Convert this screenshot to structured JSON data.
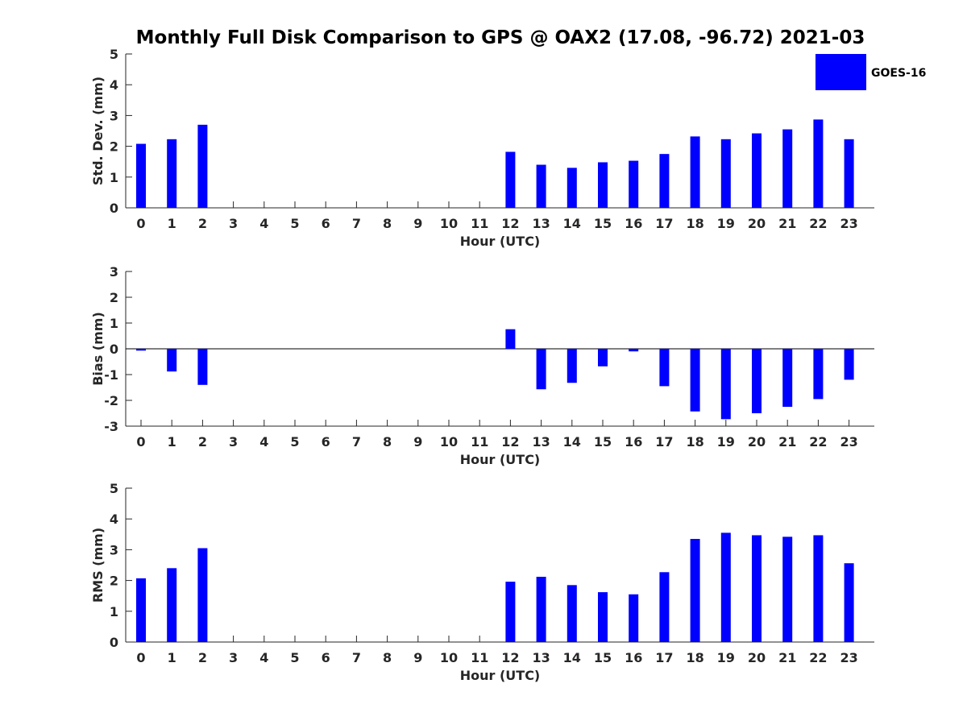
{
  "title": "Monthly Full Disk Comparison to GPS @ OAX2 (17.08, -96.72) 2021-03",
  "legend": {
    "label": "GOES-16",
    "color": "#0000ff"
  },
  "chart_data": [
    {
      "type": "bar",
      "title": "Monthly Full Disk Comparison to GPS @ OAX2 (17.08, -96.72) 2021-03",
      "xlabel": "Hour (UTC)",
      "ylabel": "Std. Dev. (mm)",
      "ylim": [
        0,
        5
      ],
      "yticks": [
        0,
        1,
        2,
        3,
        4,
        5
      ],
      "categories": [
        "0",
        "1",
        "2",
        "3",
        "4",
        "5",
        "6",
        "7",
        "8",
        "9",
        "10",
        "11",
        "12",
        "13",
        "14",
        "15",
        "16",
        "17",
        "18",
        "19",
        "20",
        "21",
        "22",
        "23"
      ],
      "series": [
        {
          "name": "GOES-16",
          "color": "#0000ff",
          "values": [
            2.08,
            2.23,
            2.7,
            null,
            null,
            null,
            null,
            null,
            null,
            null,
            null,
            null,
            1.82,
            1.4,
            1.3,
            1.48,
            1.53,
            1.75,
            2.32,
            2.23,
            2.42,
            2.55,
            2.87,
            2.23
          ]
        }
      ]
    },
    {
      "type": "bar",
      "xlabel": "Hour (UTC)",
      "ylabel": "Bias (mm)",
      "ylim": [
        -3,
        3
      ],
      "yticks": [
        -3,
        -2,
        -1,
        0,
        1,
        2,
        3
      ],
      "categories": [
        "0",
        "1",
        "2",
        "3",
        "4",
        "5",
        "6",
        "7",
        "8",
        "9",
        "10",
        "11",
        "12",
        "13",
        "14",
        "15",
        "16",
        "17",
        "18",
        "19",
        "20",
        "21",
        "22",
        "23"
      ],
      "series": [
        {
          "name": "GOES-16",
          "color": "#0000ff",
          "values": [
            -0.07,
            -0.88,
            -1.4,
            null,
            null,
            null,
            null,
            null,
            null,
            null,
            null,
            null,
            0.76,
            -1.57,
            -1.32,
            -0.68,
            -0.1,
            -1.45,
            -2.43,
            -2.73,
            -2.5,
            -2.25,
            -1.95,
            -1.2
          ]
        }
      ]
    },
    {
      "type": "bar",
      "xlabel": "Hour (UTC)",
      "ylabel": "RMS (mm)",
      "ylim": [
        0,
        5
      ],
      "yticks": [
        0,
        1,
        2,
        3,
        4,
        5
      ],
      "categories": [
        "0",
        "1",
        "2",
        "3",
        "4",
        "5",
        "6",
        "7",
        "8",
        "9",
        "10",
        "11",
        "12",
        "13",
        "14",
        "15",
        "16",
        "17",
        "18",
        "19",
        "20",
        "21",
        "22",
        "23"
      ],
      "series": [
        {
          "name": "GOES-16",
          "color": "#0000ff",
          "values": [
            2.07,
            2.4,
            3.05,
            null,
            null,
            null,
            null,
            null,
            null,
            null,
            null,
            null,
            1.96,
            2.12,
            1.85,
            1.62,
            1.55,
            2.27,
            3.35,
            3.55,
            3.47,
            3.42,
            3.47,
            2.56
          ]
        }
      ]
    }
  ]
}
